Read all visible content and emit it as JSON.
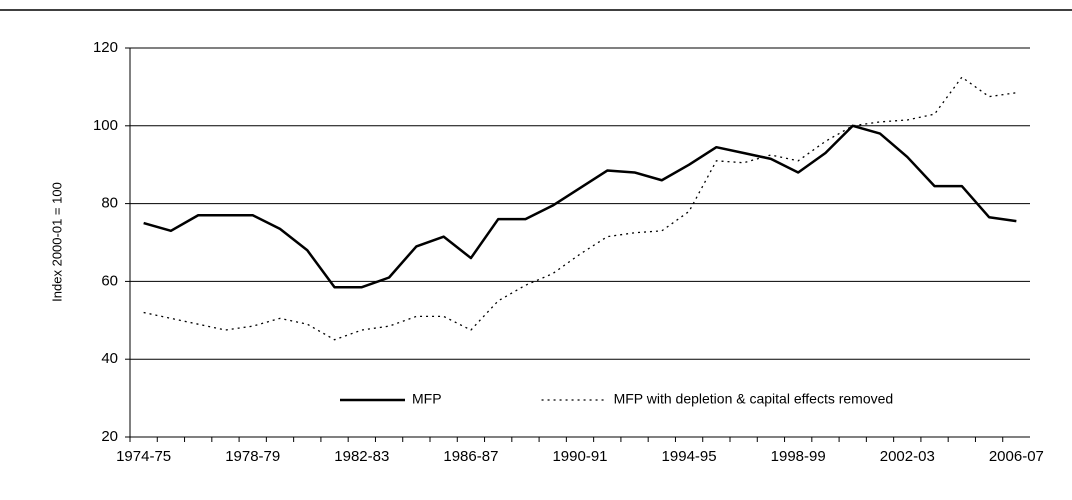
{
  "chart_data": {
    "type": "line",
    "y_label": "Index 2000-01 = 100",
    "categories": [
      "1974-75",
      null,
      null,
      null,
      "1978-79",
      null,
      null,
      null,
      "1982-83",
      null,
      null,
      null,
      "1986-87",
      null,
      null,
      null,
      "1990-91",
      null,
      null,
      null,
      "1994-95",
      null,
      null,
      null,
      "1998-99",
      null,
      null,
      null,
      "2002-03",
      null,
      null,
      null,
      "2006-07"
    ],
    "series": [
      {
        "name": "MFP",
        "color": "#000000",
        "style": "solid",
        "values": [
          75,
          73,
          77,
          77,
          77,
          73.5,
          68,
          58.5,
          58.5,
          61,
          69,
          71.5,
          66,
          76,
          76,
          79.5,
          84,
          88.5,
          88,
          86,
          90,
          94.5,
          93,
          91.5,
          88,
          93,
          100,
          98,
          92,
          84.5,
          84.5,
          76.5,
          75.5
        ]
      },
      {
        "name": "MFP with depletion & capital effects removed",
        "color": "#000000",
        "style": "dotted",
        "values": [
          52,
          50.5,
          49,
          47.5,
          48.5,
          50.5,
          49,
          45,
          47.5,
          48.5,
          51,
          51,
          47.5,
          55,
          59,
          62,
          67,
          71.5,
          72.5,
          73,
          78,
          91,
          90.5,
          92.5,
          91,
          96,
          100,
          101,
          101.5,
          103,
          112.5,
          107.5,
          108.5
        ]
      }
    ],
    "ylim": [
      20,
      120
    ],
    "yticks": [
      20,
      40,
      60,
      80,
      100,
      120
    ],
    "grid": true,
    "legend": "lower center"
  }
}
